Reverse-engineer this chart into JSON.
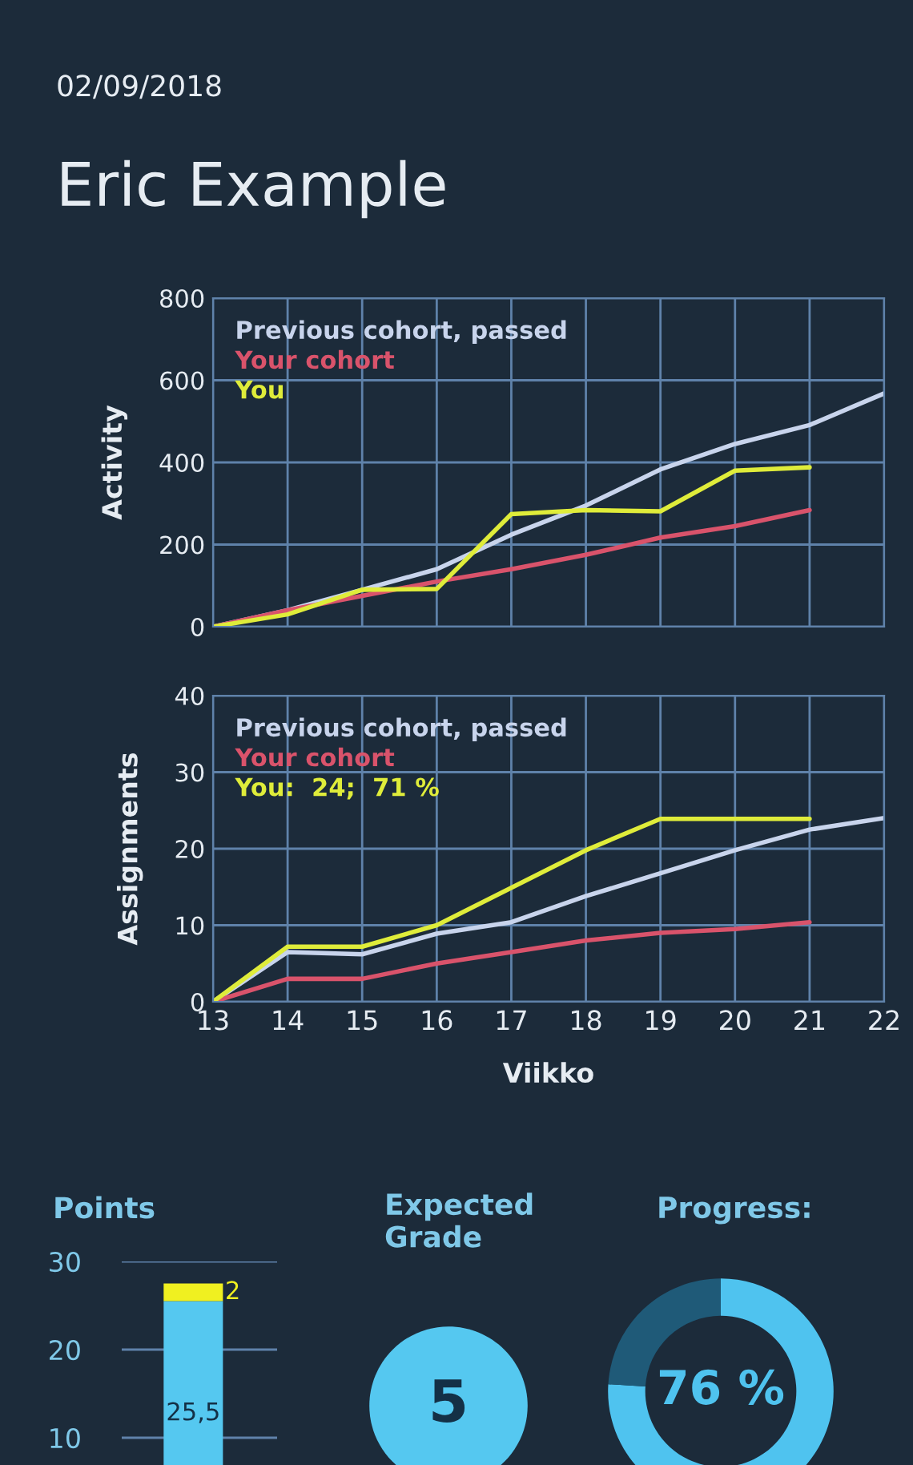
{
  "chart_data": [
    {
      "type": "line",
      "title": "Eric Example",
      "annotations": [
        "02/09/2018"
      ],
      "ylabel": "Activity",
      "x": [
        13,
        14,
        15,
        16,
        17,
        18,
        19,
        20,
        21,
        22
      ],
      "xlim": [
        13,
        22
      ],
      "xticks": [
        13,
        14,
        15,
        16,
        17,
        18,
        19,
        20,
        21,
        22
      ],
      "ylim": [
        0,
        800
      ],
      "yticks": [
        0,
        200,
        400,
        600,
        800
      ],
      "grid": true,
      "legend": "top left",
      "tick_labels": "y",
      "series": [
        {
          "name": "Previous cohort, passed",
          "color": "#c8d4ec",
          "values": [
            0,
            40,
            90,
            140,
            224,
            295,
            383,
            445,
            491,
            568
          ]
        },
        {
          "name": "Your cohort",
          "color": "#d9536b",
          "values": [
            0,
            40,
            75,
            110,
            140,
            175,
            217,
            245,
            284,
            null
          ]
        },
        {
          "name": "You",
          "color": "#dfec3a",
          "values": [
            0,
            30,
            90,
            92,
            274,
            284,
            281,
            380,
            388,
            null
          ]
        }
      ]
    },
    {
      "type": "line",
      "ylabel": "Assignments",
      "xlabel": "Viikko",
      "x": [
        13,
        14,
        15,
        16,
        17,
        18,
        19,
        20,
        21,
        22
      ],
      "xlim": [
        13,
        22
      ],
      "xticks": [
        13,
        14,
        15,
        16,
        17,
        18,
        19,
        20,
        21,
        22
      ],
      "ylim": [
        0,
        40
      ],
      "yticks": [
        0,
        10,
        20,
        30,
        40
      ],
      "grid": true,
      "legend": "top left",
      "series": [
        {
          "name": "Previous cohort, passed",
          "color": "#c8d4ec",
          "values": [
            0,
            6.5,
            6.2,
            8.9,
            10.4,
            13.8,
            16.8,
            19.8,
            22.5,
            24
          ]
        },
        {
          "name": "Your cohort",
          "color": "#d9536b",
          "values": [
            0,
            3,
            3,
            5,
            6.5,
            8,
            9,
            9.5,
            10.4,
            null
          ]
        },
        {
          "name": "You:  24;  71 %",
          "color": "#dfec3a",
          "values": [
            0,
            7.2,
            7.2,
            10,
            14.9,
            19.8,
            23.9,
            23.9,
            23.9,
            null
          ]
        }
      ]
    },
    {
      "type": "bar",
      "title": "Points",
      "stacked": true,
      "categories": [
        null
      ],
      "ylim": [
        0,
        30
      ],
      "yticks": [
        10,
        20,
        30
      ],
      "grid": "y",
      "series": [
        {
          "color": "#55c8f0",
          "values": [
            25.5
          ],
          "value_labels": [
            "25,5"
          ]
        },
        {
          "color": "#f0f020",
          "values": [
            2
          ],
          "value_labels": [
            "2"
          ]
        }
      ]
    },
    {
      "type": "other",
      "title": "Expected\nGrade",
      "annotations": [
        "5"
      ]
    },
    {
      "type": "donut",
      "title": "Progress:",
      "categories": [
        null,
        null
      ],
      "values": [
        76,
        24
      ],
      "colors": [
        "#4fc3ef",
        "#1f5a78"
      ],
      "annotations": [
        "76 %"
      ]
    }
  ]
}
